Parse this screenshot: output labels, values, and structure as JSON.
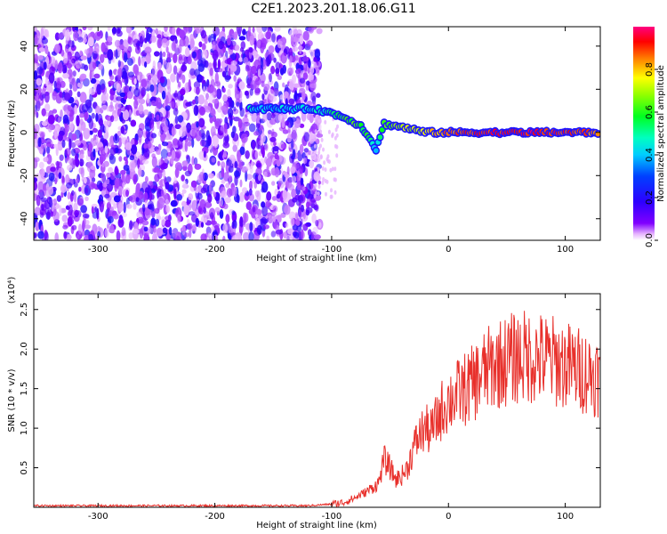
{
  "title": "C2E1.2023.201.18.06.G11",
  "colors": {
    "snr_line": "#e8302b",
    "axis": "#000000",
    "background": "#ffffff"
  },
  "chart_data": [
    {
      "type": "heatmap",
      "xlabel": "Height of straight line (km)",
      "ylabel": "Frequency (Hz)",
      "xlim": [
        -355,
        130
      ],
      "ylim": [
        -50,
        49
      ],
      "xticks": [
        -300,
        -200,
        -100,
        0,
        100
      ],
      "yticks": [
        -40,
        -20,
        0,
        20,
        40
      ],
      "colorbar": {
        "label": "Normalized spectral amplitude",
        "range": [
          0,
          1
        ],
        "ticks": [
          "0.0",
          "0.2",
          "0.4",
          "0.6",
          "0.8"
        ],
        "colormap": "rainbow (magenta at 0.0, through blue, cyan, green, yellow to red/magenta at 1.0)"
      },
      "ridge": {
        "description": "dominant Doppler frequency trace",
        "points": [
          {
            "x": -170,
            "y": 11,
            "amp": 0.45
          },
          {
            "x": -150,
            "y": 11,
            "amp": 0.4
          },
          {
            "x": -115,
            "y": 11,
            "amp": 0.45
          },
          {
            "x": -100,
            "y": 9,
            "amp": 0.5
          },
          {
            "x": -85,
            "y": 6,
            "amp": 0.6
          },
          {
            "x": -75,
            "y": 3,
            "amp": 0.6
          },
          {
            "x": -68,
            "y": -2,
            "amp": 0.55
          },
          {
            "x": -62,
            "y": -8,
            "amp": 0.4
          },
          {
            "x": -55,
            "y": 4,
            "amp": 0.6
          },
          {
            "x": -45,
            "y": 3,
            "amp": 0.65
          },
          {
            "x": -35,
            "y": 2,
            "amp": 0.7
          },
          {
            "x": -20,
            "y": 0,
            "amp": 0.75
          },
          {
            "x": 0,
            "y": 0,
            "amp": 0.85
          },
          {
            "x": 30,
            "y": 0,
            "amp": 0.9
          },
          {
            "x": 60,
            "y": 0,
            "amp": 0.95
          },
          {
            "x": 100,
            "y": 0,
            "amp": 0.9
          },
          {
            "x": 130,
            "y": 0,
            "amp": 0.85
          }
        ]
      },
      "noise_region": {
        "x_from": -355,
        "x_to": -115,
        "description": "broadband speckle noise across all frequencies"
      }
    },
    {
      "type": "line",
      "xlabel": "Height of straight line (km)",
      "ylabel": "SNR (10 * v/v)",
      "y_multiplier": "(x10⁴)",
      "xlim": [
        -355,
        130
      ],
      "ylim": [
        0,
        2.7
      ],
      "xticks": [
        -300,
        -200,
        -100,
        0,
        100
      ],
      "yticks": [
        "0.5",
        "1.0",
        "1.5",
        "2.0",
        "2.5"
      ],
      "series": [
        {
          "x": [
            -355,
            -300,
            -250,
            -200,
            -150,
            -120,
            -100,
            -90,
            -80,
            -70,
            -60,
            -55,
            -50,
            -45,
            -40,
            -35,
            -30,
            -25,
            -20,
            -15,
            -10,
            -5,
            0,
            10,
            20,
            30,
            40,
            50,
            60,
            70,
            80,
            90,
            100,
            110,
            120,
            130
          ],
          "y": [
            0.02,
            0.02,
            0.02,
            0.02,
            0.02,
            0.02,
            0.04,
            0.06,
            0.12,
            0.2,
            0.3,
            0.6,
            0.5,
            0.35,
            0.4,
            0.5,
            0.75,
            0.9,
            1.0,
            0.95,
            1.1,
            1.25,
            1.35,
            1.45,
            1.55,
            1.7,
            1.8,
            1.85,
            1.9,
            1.9,
            1.88,
            1.85,
            1.8,
            1.75,
            1.7,
            1.65
          ]
        }
      ]
    }
  ]
}
